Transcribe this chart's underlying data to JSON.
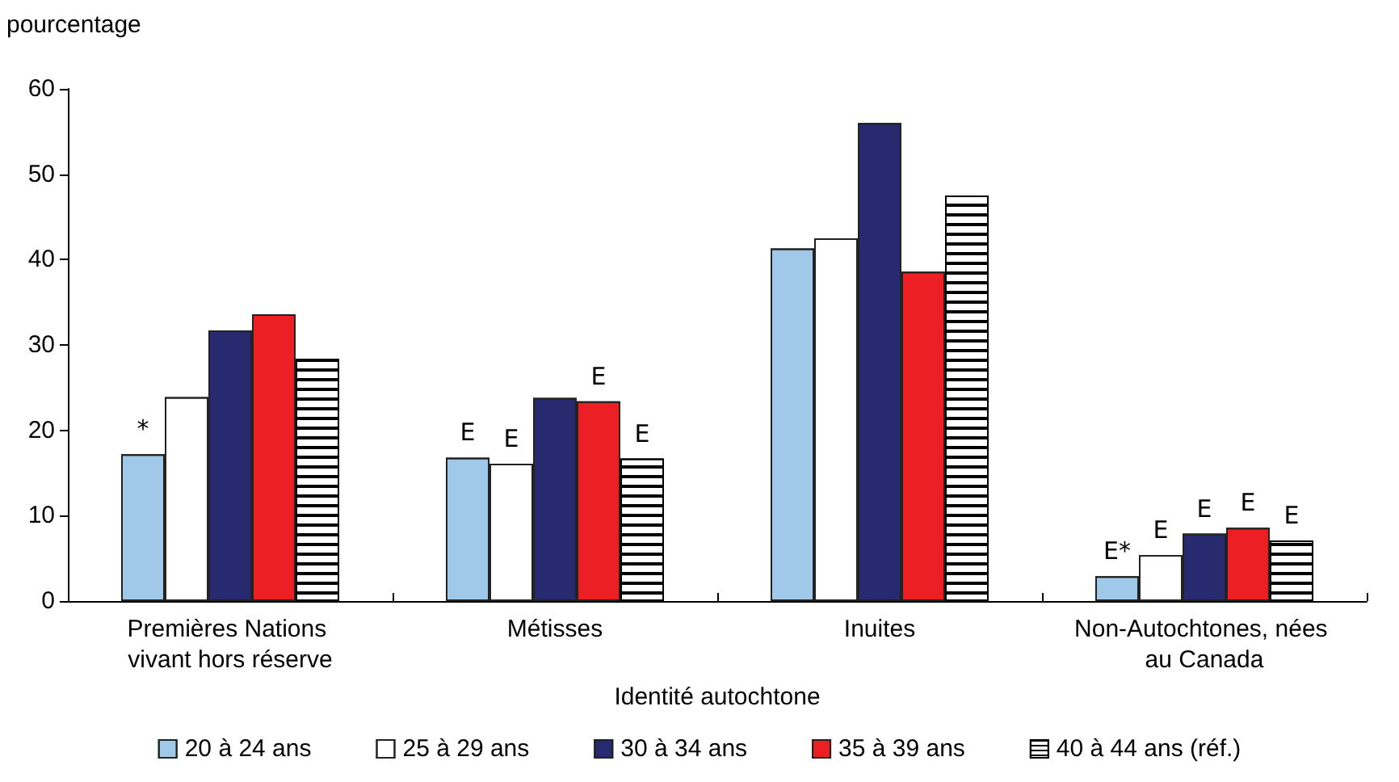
{
  "chart_data": {
    "type": "bar",
    "ylabel": "pourcentage",
    "xlabel": "Identité autochtone",
    "categories": [
      "Premières Nations vivant hors réserve",
      "Métisses",
      "Inuites",
      "Non-Autochtones, nées au Canada"
    ],
    "series": [
      {
        "name": "20 à 24 ans",
        "color": "#a0c8e8",
        "values": [
          17.2,
          16.8,
          41.3,
          2.9
        ],
        "value_labels": [
          "*",
          "E",
          null,
          "E*"
        ]
      },
      {
        "name": "25 à 29 ans",
        "color": "#ffffff",
        "values": [
          23.9,
          16.1,
          42.5,
          5.4
        ],
        "value_labels": [
          null,
          "E",
          null,
          "E"
        ]
      },
      {
        "name": "30 à 34 ans",
        "color": "#272a6e",
        "values": [
          31.7,
          23.8,
          56.0,
          7.9
        ],
        "value_labels": [
          null,
          null,
          null,
          "E"
        ]
      },
      {
        "name": "35 à 39 ans",
        "color": "#ec2024",
        "values": [
          33.6,
          23.4,
          38.6,
          8.6
        ],
        "value_labels": [
          null,
          "E",
          null,
          "E"
        ]
      },
      {
        "name": "40 à 44 ans (réf.)",
        "color": "#000000",
        "values": [
          28.4,
          16.7,
          47.5,
          7.1
        ],
        "value_labels": [
          null,
          "E",
          null,
          "E"
        ]
      }
    ],
    "ylim": [
      0,
      60
    ],
    "yticks": [
      0,
      10,
      20,
      30,
      40,
      50,
      60
    ],
    "grid": false,
    "legend": "bottom"
  }
}
